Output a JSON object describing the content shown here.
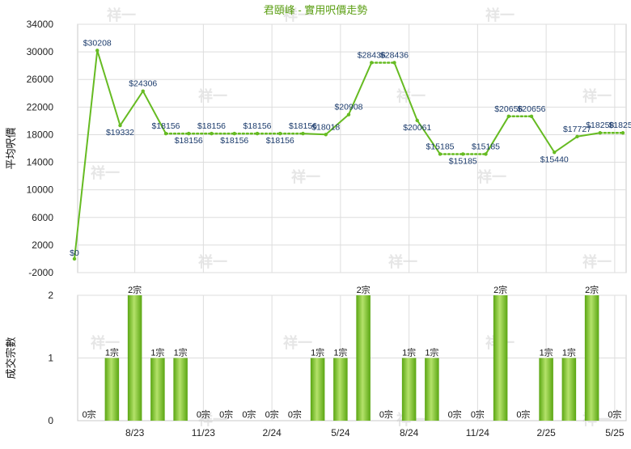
{
  "chart_data": [
    {
      "type": "line",
      "title": "君頤峰 - 實用呎價走勢",
      "ylabel": "平均呎價",
      "ylim": [
        -2000,
        34000
      ],
      "yticks": [
        -2000,
        2000,
        6000,
        10000,
        14000,
        18000,
        22000,
        26000,
        30000,
        34000
      ],
      "grid": true,
      "color": "#66bb22",
      "points": [
        {
          "label": "$0",
          "value": 0
        },
        {
          "label": "$30208",
          "value": 30208
        },
        {
          "label": "$19332",
          "value": 19332
        },
        {
          "label": "$24306",
          "value": 24306
        },
        {
          "label": "$18156",
          "value": 18156
        },
        {
          "label": "$18156",
          "value": 18156
        },
        {
          "label": "$18156",
          "value": 18156
        },
        {
          "label": "$18156",
          "value": 18156
        },
        {
          "label": "$18156",
          "value": 18156
        },
        {
          "label": "$18156",
          "value": 18156
        },
        {
          "label": "$18156",
          "value": 18156
        },
        {
          "label": "$18018",
          "value": 18018
        },
        {
          "label": "$20908",
          "value": 20908
        },
        {
          "label": "$28436",
          "value": 28436
        },
        {
          "label": "$28436",
          "value": 28436
        },
        {
          "label": "$20061",
          "value": 20061
        },
        {
          "label": "$15185",
          "value": 15185
        },
        {
          "label": "$15185",
          "value": 15185
        },
        {
          "label": "$15185",
          "value": 15185
        },
        {
          "label": "$20656",
          "value": 20656
        },
        {
          "label": "$20656",
          "value": 20656
        },
        {
          "label": "$15440",
          "value": 15440
        },
        {
          "label": "$17727",
          "value": 17727
        },
        {
          "label": "$18258",
          "value": 18258
        },
        {
          "label": "$18258",
          "value": 18258
        }
      ]
    },
    {
      "type": "bar",
      "ylabel": "成交宗數",
      "ylim": [
        0,
        2
      ],
      "yticks": [
        "0",
        "1",
        "2"
      ],
      "categories": [
        "",
        "",
        "8/23",
        "",
        "",
        "11/23",
        "",
        "",
        "2/24",
        "",
        "",
        "5/24",
        "",
        "",
        "8/24",
        "",
        "",
        "11/24",
        "",
        "",
        "2/25",
        "",
        "",
        "5/25"
      ],
      "values": [
        0,
        1,
        2,
        1,
        1,
        0,
        0,
        0,
        0,
        0,
        1,
        1,
        2,
        0,
        1,
        1,
        0,
        0,
        2,
        0,
        1,
        1,
        2,
        0
      ],
      "bar_labels": [
        "0宗",
        "1宗",
        "2宗",
        "1宗",
        "1宗",
        "0宗",
        "0宗",
        "0宗",
        "0宗",
        "0宗",
        "1宗",
        "1宗",
        "2宗",
        "0宗",
        "1宗",
        "1宗",
        "0宗",
        "0宗",
        "2宗",
        "0宗",
        "1宗",
        "1宗",
        "2宗",
        "0宗"
      ],
      "color": "#7cc42a"
    }
  ],
  "watermark": "祥一"
}
